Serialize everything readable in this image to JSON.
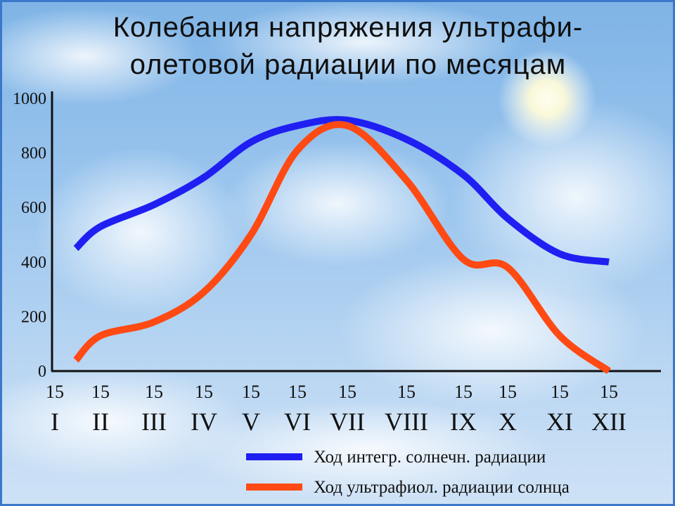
{
  "colors": {
    "series_integral": "#1f1ff2",
    "series_uv": "#ff4a14",
    "axis": "#111111"
  },
  "chart_data": {
    "type": "line",
    "title_lines": [
      "Колебания напряжения ультрафи-",
      "олетовой радиации по месяцам"
    ],
    "xlabel": "",
    "ylabel": "",
    "ylim": [
      0,
      1000
    ],
    "yticks": [
      0,
      200,
      400,
      600,
      800,
      1000
    ],
    "x_ticks": [
      {
        "day": "15",
        "month": "I"
      },
      {
        "day": "15",
        "month": "II"
      },
      {
        "day": "15",
        "month": "III"
      },
      {
        "day": "15",
        "month": "IV"
      },
      {
        "day": "15",
        "month": "V"
      },
      {
        "day": "15",
        "month": "VI"
      },
      {
        "day": "15",
        "month": "VII"
      },
      {
        "day": "15",
        "month": "VIII"
      },
      {
        "day": "15",
        "month": "IX"
      },
      {
        "day": "15",
        "month": "X"
      },
      {
        "day": "15",
        "month": "XI"
      },
      {
        "day": "15",
        "month": "XII"
      }
    ],
    "grid": false,
    "legend_position": "bottom-right",
    "series": [
      {
        "name": "Ход интегр. солнечн. радиации",
        "color": "#1f1ff2",
        "values": [
          450,
          530,
          610,
          710,
          840,
          900,
          920,
          850,
          720,
          560,
          430,
          400
        ]
      },
      {
        "name": "Ход ультрафиол. радиации солнца",
        "color": "#ff4a14",
        "values": [
          40,
          130,
          180,
          290,
          500,
          810,
          900,
          700,
          410,
          380,
          130,
          0
        ]
      }
    ]
  }
}
